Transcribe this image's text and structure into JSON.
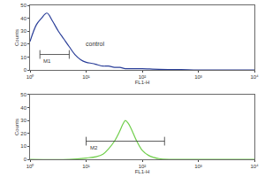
{
  "chart_data": [
    {
      "type": "line",
      "log": "x",
      "xlabel": "FL1-H",
      "ylabel": "Counts",
      "color": "#2b3f99",
      "x": [
        1,
        1.3,
        1.6,
        2,
        2.5,
        3.2,
        4,
        5,
        6.3,
        8,
        10,
        13,
        16,
        20,
        25,
        32,
        40,
        50,
        63,
        80,
        100,
        200,
        500,
        1000,
        10000
      ],
      "values": [
        22,
        35,
        40,
        44,
        38,
        30,
        24,
        18,
        12,
        8,
        6,
        5,
        4,
        3,
        3,
        2,
        2,
        1,
        1,
        1,
        1,
        0.5,
        0.3,
        0,
        0
      ],
      "xlim": [
        1,
        10000
      ],
      "xticks": [
        {
          "value": 1,
          "label": "10⁰"
        },
        {
          "value": 10,
          "label": "10¹"
        },
        {
          "value": 100,
          "label": "10²"
        },
        {
          "value": 1000,
          "label": "10³"
        },
        {
          "value": 10000,
          "label": "10⁴"
        }
      ],
      "ylim": [
        0,
        50
      ],
      "yticks": [
        0,
        10,
        20,
        30,
        40,
        50
      ],
      "gates": [
        {
          "label": "M1",
          "range": [
            1.5,
            5
          ],
          "level": 12
        }
      ],
      "annotations": [
        {
          "text": "control",
          "x": 9,
          "y": 20
        }
      ]
    },
    {
      "type": "line",
      "log": "x",
      "xlabel": "FL1-H",
      "ylabel": "Counts",
      "color": "#6fce4a",
      "x": [
        1,
        5,
        10,
        15,
        20,
        25,
        32,
        40,
        45,
        50,
        56,
        63,
        80,
        100,
        130,
        160,
        200,
        300,
        1000,
        10000
      ],
      "values": [
        0,
        0,
        1,
        2,
        4,
        8,
        14,
        22,
        27,
        30,
        28,
        24,
        14,
        7,
        3,
        1.5,
        0.5,
        0,
        0,
        0
      ],
      "xlim": [
        1,
        10000
      ],
      "xticks": [
        {
          "value": 1,
          "label": "10⁰"
        },
        {
          "value": 10,
          "label": "10¹"
        },
        {
          "value": 100,
          "label": "10²"
        },
        {
          "value": 1000,
          "label": "10³"
        },
        {
          "value": 10000,
          "label": "10⁴"
        }
      ],
      "ylim": [
        0,
        50
      ],
      "yticks": [
        0,
        10,
        20,
        30,
        40,
        50
      ],
      "gates": [
        {
          "label": "M2",
          "range": [
            10,
            250
          ],
          "level": 14
        }
      ],
      "annotations": []
    }
  ]
}
